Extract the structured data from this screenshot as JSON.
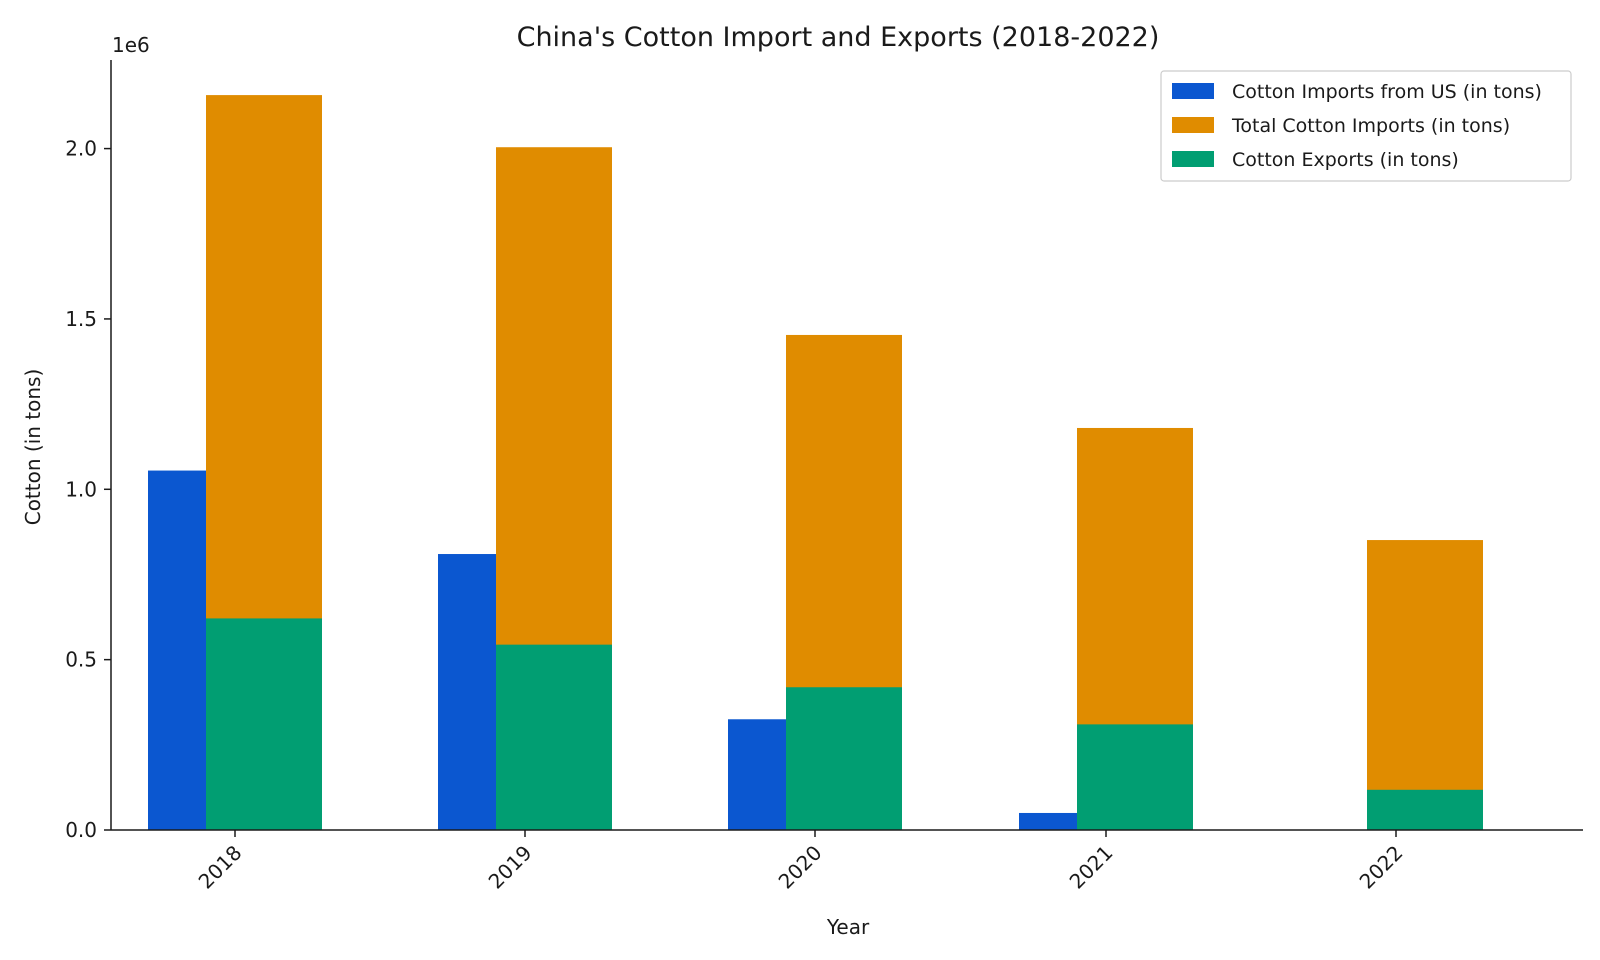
{
  "chart_data": {
    "type": "bar",
    "title": "China's Cotton Import and Exports (2018-2022)",
    "xlabel": "Year",
    "ylabel": "Cotton (in tons)",
    "y_offset_label": "1e6",
    "ylim": [
      0,
      2260000
    ],
    "yticks": [
      0,
      500000,
      1000000,
      1500000,
      2000000
    ],
    "ytick_labels": [
      "0.0",
      "0.5",
      "1.0",
      "1.5",
      "2.0"
    ],
    "categories": [
      "2018",
      "2019",
      "2020",
      "2021",
      "2022"
    ],
    "series": [
      {
        "name": "Cotton Imports from US (in tons)",
        "color": "#0b57d0",
        "values": [
          1055000,
          810000,
          325000,
          50000,
          0
        ]
      },
      {
        "name": "Total Cotton Imports (in tons)",
        "color": "#e08c00",
        "values": [
          2157000,
          2004000,
          1453000,
          1180000,
          851000
        ]
      },
      {
        "name": "Cotton Exports (in tons)",
        "color": "#019e72",
        "values": [
          621000,
          544000,
          419000,
          310000,
          118000
        ]
      }
    ],
    "legend_position": "top-right",
    "grid": false
  }
}
